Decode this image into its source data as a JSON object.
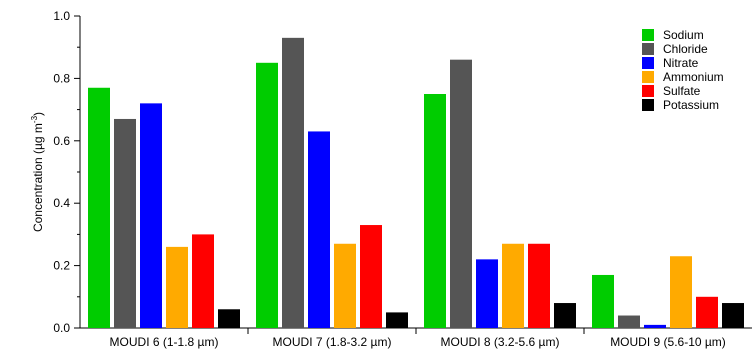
{
  "chart_data": {
    "type": "bar",
    "categories": [
      "MOUDI 6 (1-1.8 µm)",
      "MOUDI 7 (1.8-3.2 µm)",
      "MOUDI 8 (3.2-5.6 µm)",
      "MOUDI 9 (5.6-10 µm)"
    ],
    "series": [
      {
        "name": "Sodium",
        "color": "#00cc00",
        "values": [
          0.77,
          0.85,
          0.75,
          0.17
        ]
      },
      {
        "name": "Chloride",
        "color": "#555555",
        "values": [
          0.67,
          0.93,
          0.86,
          0.04
        ]
      },
      {
        "name": "Nitrate",
        "color": "#0000ff",
        "values": [
          0.72,
          0.63,
          0.22,
          0.01
        ]
      },
      {
        "name": "Ammonium",
        "color": "#ffaa00",
        "values": [
          0.26,
          0.27,
          0.27,
          0.23
        ]
      },
      {
        "name": "Sulfate",
        "color": "#ff0000",
        "values": [
          0.3,
          0.33,
          0.27,
          0.1
        ]
      },
      {
        "name": "Potassium",
        "color": "#000000",
        "values": [
          0.06,
          0.05,
          0.08,
          0.08
        ]
      }
    ],
    "ylabel": {
      "main": "Concentration (µg m",
      "sup": "-3",
      "tail": ")"
    },
    "ylim": [
      0,
      1.0
    ],
    "yticks": [
      "0.0",
      "0.2",
      "0.4",
      "0.6",
      "0.8",
      "1.0"
    ],
    "legend_position": "top-right",
    "grid": false
  }
}
